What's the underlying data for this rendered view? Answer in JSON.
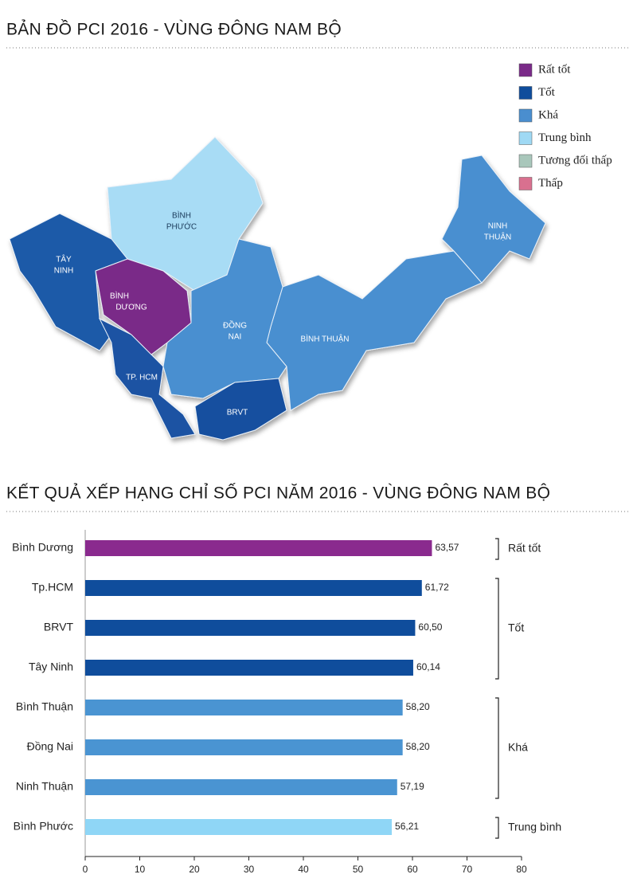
{
  "map": {
    "title": "BẢN ĐỒ PCI 2016 - VÙNG ĐÔNG NAM BỘ",
    "legend": [
      {
        "label": "Rất tốt",
        "color": "#7a2a88"
      },
      {
        "label": "Tốt",
        "color": "#0f4d9c"
      },
      {
        "label": "Khá",
        "color": "#4a8ecf"
      },
      {
        "label": "Trung bình",
        "color": "#9fd9f4"
      },
      {
        "label": "Tương đối thấp",
        "color": "#a9c7bb"
      },
      {
        "label": "Thấp",
        "color": "#d9708f"
      }
    ],
    "regions": [
      {
        "lines": [
          "TÂY",
          "NINH"
        ]
      },
      {
        "lines": [
          "BÌNH",
          "PHƯỚC"
        ]
      },
      {
        "lines": [
          "BÌNH",
          "DƯƠNG"
        ]
      },
      {
        "lines": [
          "ĐỒNG",
          "NAI"
        ]
      },
      {
        "lines": [
          "BÌNH THUẬN"
        ]
      },
      {
        "lines": [
          "TP. HCM"
        ]
      },
      {
        "lines": [
          "BRVT"
        ]
      },
      {
        "lines": [
          "NINH",
          "THUẬN"
        ]
      }
    ]
  },
  "chart_data": {
    "type": "bar",
    "orientation": "horizontal",
    "title": "KẾT QUẢ XẾP HẠNG CHỈ SỐ PCI NĂM 2016 - VÙNG ĐÔNG NAM BỘ",
    "categories": [
      "Bình Dương",
      "Tp.HCM",
      "BRVT",
      "Tây Ninh",
      "Bình Thuận",
      "Đồng Nai",
      "Ninh Thuận",
      "Bình Phước"
    ],
    "values": [
      63.57,
      61.72,
      60.5,
      60.14,
      58.2,
      58.2,
      57.19,
      56.21
    ],
    "value_labels": [
      "63,57",
      "61,72",
      "60,50",
      "60,14",
      "58,20",
      "58,20",
      "57,19",
      "56,21"
    ],
    "colors": [
      "#8a2a8e",
      "#0f4d9c",
      "#0f4d9c",
      "#0f4d9c",
      "#4a94d2",
      "#4a94d2",
      "#4a94d2",
      "#8fd6f6"
    ],
    "ratings": [
      "Rất tốt",
      "Tốt",
      "Tốt",
      "Tốt",
      "Khá",
      "Khá",
      "Khá",
      "Trung bình"
    ],
    "xlim": [
      0,
      80
    ],
    "xticks": [
      0,
      10,
      20,
      30,
      40,
      50,
      60,
      70,
      80
    ]
  }
}
